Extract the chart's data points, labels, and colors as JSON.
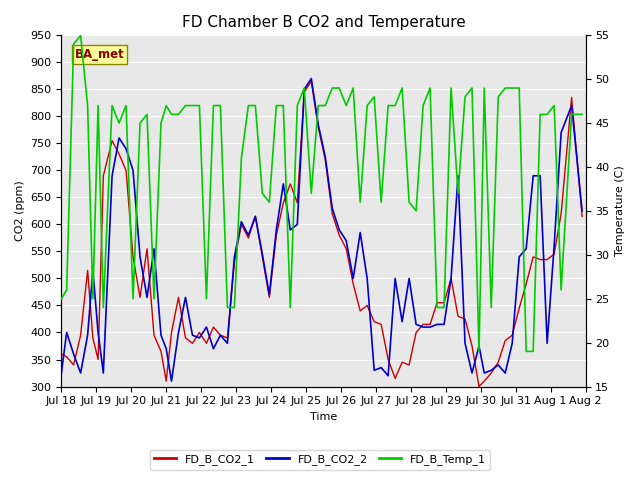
{
  "title": "FD Chamber B CO2 and Temperature",
  "xlabel": "Time",
  "ylabel_left": "CO2 (ppm)",
  "ylabel_right": "Temperature (C)",
  "ylim_left": [
    300,
    950
  ],
  "ylim_right": [
    15,
    55
  ],
  "yticks_left": [
    300,
    350,
    400,
    450,
    500,
    550,
    600,
    650,
    700,
    750,
    800,
    850,
    900,
    950
  ],
  "yticks_right": [
    15,
    20,
    25,
    30,
    35,
    40,
    45,
    50,
    55
  ],
  "color_co2_1": "#cc0000",
  "color_co2_2": "#0000cc",
  "color_temp": "#00cc00",
  "legend_labels": [
    "FD_B_CO2_1",
    "FD_B_CO2_2",
    "FD_B_Temp_1"
  ],
  "watermark_text": "BA_met",
  "watermark_color": "#880000",
  "watermark_bg": "#ffff99",
  "watermark_edge": "#888800",
  "plot_bg": "#e8e8e8",
  "fig_bg": "#ffffff",
  "grid_color": "#ffffff",
  "title_fontsize": 11,
  "axis_fontsize": 8,
  "tick_fontsize": 8,
  "x_start": 0,
  "x_end": 15.0,
  "x_ticks": [
    0,
    1,
    2,
    3,
    4,
    5,
    6,
    7,
    8,
    9,
    10,
    11,
    12,
    13,
    14,
    15
  ],
  "x_tick_labels": [
    "Jul 18",
    "Jul 19",
    "Jul 20",
    "Jul 21",
    "Jul 22",
    "Jul 23",
    "Jul 24",
    "Jul 25",
    "Jul 26",
    "Jul 27",
    "Jul 28",
    "Jul 29",
    "Jul 30",
    "Jul 31",
    "Aug 1",
    "Aug 2"
  ],
  "co2_1_x": [
    0.0,
    0.15,
    0.35,
    0.55,
    0.75,
    0.9,
    1.05,
    1.2,
    1.45,
    1.65,
    1.85,
    2.05,
    2.25,
    2.45,
    2.65,
    2.85,
    3.0,
    3.15,
    3.35,
    3.55,
    3.75,
    3.95,
    4.15,
    4.35,
    4.55,
    4.75,
    4.95,
    5.15,
    5.35,
    5.55,
    5.75,
    5.95,
    6.15,
    6.35,
    6.55,
    6.75,
    6.95,
    7.15,
    7.35,
    7.55,
    7.75,
    7.95,
    8.15,
    8.35,
    8.55,
    8.75,
    8.95,
    9.15,
    9.35,
    9.55,
    9.75,
    9.95,
    10.15,
    10.35,
    10.55,
    10.75,
    10.95,
    11.15,
    11.35,
    11.55,
    11.75,
    11.95,
    12.1,
    12.3,
    12.5,
    12.7,
    12.9,
    13.1,
    13.3,
    13.5,
    13.7,
    13.9,
    14.1,
    14.3,
    14.6,
    14.9
  ],
  "co2_1_y": [
    360,
    355,
    340,
    395,
    515,
    390,
    350,
    690,
    755,
    730,
    700,
    540,
    465,
    555,
    395,
    365,
    310,
    400,
    465,
    390,
    380,
    400,
    380,
    410,
    395,
    390,
    530,
    600,
    575,
    615,
    540,
    465,
    580,
    640,
    675,
    640,
    845,
    865,
    780,
    720,
    620,
    580,
    555,
    490,
    440,
    450,
    420,
    415,
    350,
    315,
    345,
    340,
    400,
    415,
    415,
    455,
    455,
    500,
    430,
    425,
    375,
    300,
    310,
    325,
    345,
    385,
    395,
    445,
    490,
    540,
    535,
    535,
    545,
    620,
    835,
    615
  ],
  "co2_2_x": [
    0.0,
    0.15,
    0.35,
    0.55,
    0.75,
    0.9,
    1.05,
    1.2,
    1.45,
    1.65,
    1.85,
    2.05,
    2.25,
    2.45,
    2.65,
    2.85,
    3.0,
    3.15,
    3.35,
    3.55,
    3.75,
    3.95,
    4.15,
    4.35,
    4.55,
    4.75,
    4.95,
    5.15,
    5.35,
    5.55,
    5.75,
    5.95,
    6.15,
    6.35,
    6.55,
    6.75,
    6.95,
    7.15,
    7.35,
    7.55,
    7.75,
    7.95,
    8.15,
    8.35,
    8.55,
    8.75,
    8.95,
    9.15,
    9.35,
    9.55,
    9.75,
    9.95,
    10.15,
    10.35,
    10.55,
    10.75,
    10.95,
    11.15,
    11.35,
    11.55,
    11.75,
    11.95,
    12.1,
    12.3,
    12.5,
    12.7,
    12.9,
    13.1,
    13.3,
    13.5,
    13.7,
    13.9,
    14.1,
    14.3,
    14.6,
    14.9
  ],
  "co2_2_y": [
    325,
    400,
    360,
    325,
    395,
    515,
    400,
    325,
    690,
    760,
    740,
    700,
    540,
    465,
    555,
    395,
    370,
    310,
    400,
    465,
    395,
    390,
    410,
    370,
    395,
    380,
    540,
    605,
    580,
    615,
    545,
    470,
    590,
    675,
    590,
    600,
    850,
    870,
    785,
    725,
    630,
    590,
    570,
    500,
    585,
    500,
    330,
    335,
    320,
    500,
    420,
    500,
    415,
    410,
    410,
    415,
    415,
    500,
    690,
    380,
    325,
    375,
    325,
    330,
    340,
    325,
    380,
    540,
    555,
    690,
    690,
    380,
    560,
    770,
    820,
    625
  ],
  "temp_x": [
    0.0,
    0.15,
    0.35,
    0.55,
    0.75,
    0.9,
    1.05,
    1.2,
    1.45,
    1.65,
    1.85,
    2.05,
    2.25,
    2.45,
    2.65,
    2.85,
    3.0,
    3.15,
    3.35,
    3.55,
    3.75,
    3.95,
    4.15,
    4.35,
    4.55,
    4.75,
    4.95,
    5.15,
    5.35,
    5.55,
    5.75,
    5.95,
    6.15,
    6.35,
    6.55,
    6.75,
    6.95,
    7.15,
    7.35,
    7.55,
    7.75,
    7.95,
    8.15,
    8.35,
    8.55,
    8.75,
    8.95,
    9.15,
    9.35,
    9.55,
    9.75,
    9.95,
    10.15,
    10.35,
    10.55,
    10.75,
    10.95,
    11.15,
    11.35,
    11.55,
    11.75,
    11.95,
    12.1,
    12.3,
    12.5,
    12.7,
    12.9,
    13.1,
    13.3,
    13.5,
    13.7,
    13.9,
    14.1,
    14.3,
    14.6,
    14.9
  ],
  "temp_y": [
    25,
    26,
    54,
    55,
    47,
    25,
    47,
    24,
    47,
    45,
    47,
    25,
    45,
    46,
    25,
    45,
    47,
    46,
    46,
    47,
    47,
    47,
    25,
    47,
    47,
    24,
    24,
    41,
    47,
    47,
    37,
    36,
    47,
    47,
    24,
    47,
    49,
    37,
    47,
    47,
    49,
    49,
    47,
    49,
    36,
    47,
    48,
    36,
    47,
    47,
    49,
    36,
    35,
    47,
    49,
    24,
    24,
    49,
    37,
    48,
    49,
    19,
    49,
    24,
    48,
    49,
    49,
    49,
    19,
    19,
    46,
    46,
    47,
    26,
    46,
    46
  ]
}
